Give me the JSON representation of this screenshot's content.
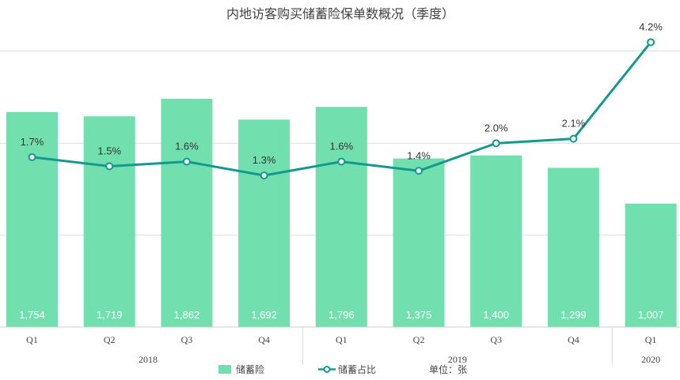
{
  "chart_data": {
    "type": "bar",
    "title": "内地访客购买储蓄险保单数概况（季度）",
    "categories": [
      "Q1",
      "Q2",
      "Q3",
      "Q4",
      "Q1",
      "Q2",
      "Q3",
      "Q4",
      "Q1"
    ],
    "groups": [
      {
        "label": "2018",
        "count": 4
      },
      {
        "label": "2019",
        "count": 4
      },
      {
        "label": "2020",
        "count": 1
      }
    ],
    "series": [
      {
        "name": "储蓄险",
        "type": "bar",
        "color": "#72dfaf",
        "values": [
          1754,
          1719,
          1862,
          1692,
          1796,
          1375,
          1400,
          1299,
          1007
        ],
        "labels": [
          "1,754",
          "1,719",
          "1,862",
          "1,692",
          "1,796",
          "1,375",
          "1,400",
          "1,299",
          "1,007"
        ]
      },
      {
        "name": "储蓄占比",
        "type": "line",
        "color": "#139a8d",
        "values": [
          1.7,
          1.5,
          1.6,
          1.3,
          1.6,
          1.4,
          2.0,
          2.1,
          4.2
        ],
        "labels": [
          "1.7%",
          "1.5%",
          "1.6%",
          "1.3%",
          "1.6%",
          "1.4%",
          "2.0%",
          "2.1%",
          "4.2%"
        ]
      }
    ],
    "ylim": [
      0,
      2500
    ],
    "y2lim": [
      -2.0,
      4.5
    ],
    "gridlines": [
      750,
      1500,
      2250
    ],
    "grid": true,
    "legend": "bottom",
    "unit_note": "单位：张"
  }
}
